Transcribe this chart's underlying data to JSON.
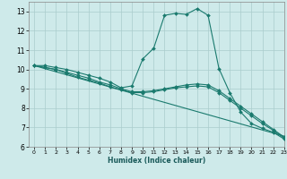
{
  "title": "",
  "xlabel": "Humidex (Indice chaleur)",
  "xlim": [
    -0.5,
    23
  ],
  "ylim": [
    6,
    13.5
  ],
  "yticks": [
    6,
    7,
    8,
    9,
    10,
    11,
    12,
    13
  ],
  "xticks": [
    0,
    1,
    2,
    3,
    4,
    5,
    6,
    7,
    8,
    9,
    10,
    11,
    12,
    13,
    14,
    15,
    16,
    17,
    18,
    19,
    20,
    21,
    22,
    23
  ],
  "bg_color": "#ceeaea",
  "grid_color": "#aacccc",
  "line_color": "#1a7a6e",
  "series": [
    {
      "x": [
        0,
        1,
        2,
        3,
        4,
        5,
        6,
        7,
        8,
        9,
        10,
        11,
        12,
        13,
        14,
        15,
        16,
        17,
        18,
        19,
        20,
        21,
        22,
        23
      ],
      "y": [
        10.2,
        10.2,
        10.1,
        10.0,
        9.85,
        9.7,
        9.55,
        9.35,
        9.05,
        9.15,
        10.55,
        11.1,
        12.8,
        12.9,
        12.85,
        13.15,
        12.8,
        10.05,
        8.8,
        7.8,
        7.2,
        6.95,
        6.75,
        6.4
      ],
      "marker": true
    },
    {
      "x": [
        0,
        1,
        2,
        3,
        4,
        5,
        6,
        7,
        8,
        9,
        10,
        11,
        12,
        13,
        14,
        15,
        16,
        17,
        18,
        19,
        20,
        21,
        22,
        23
      ],
      "y": [
        10.2,
        10.1,
        10.0,
        9.85,
        9.7,
        9.55,
        9.35,
        9.2,
        9.0,
        8.85,
        8.85,
        8.9,
        9.0,
        9.1,
        9.2,
        9.25,
        9.2,
        8.9,
        8.5,
        8.1,
        7.7,
        7.3,
        6.9,
        6.5
      ],
      "marker": true
    },
    {
      "x": [
        0,
        23
      ],
      "y": [
        10.2,
        6.55
      ],
      "marker": false
    },
    {
      "x": [
        0,
        1,
        2,
        3,
        4,
        5,
        6,
        7,
        8,
        9,
        10,
        11,
        12,
        13,
        14,
        15,
        16,
        17,
        18,
        19,
        20,
        21,
        22,
        23
      ],
      "y": [
        10.2,
        10.1,
        10.0,
        9.8,
        9.6,
        9.45,
        9.3,
        9.1,
        8.95,
        8.8,
        8.8,
        8.85,
        8.95,
        9.05,
        9.1,
        9.15,
        9.1,
        8.8,
        8.4,
        8.0,
        7.6,
        7.2,
        6.85,
        6.45
      ],
      "marker": true
    }
  ]
}
